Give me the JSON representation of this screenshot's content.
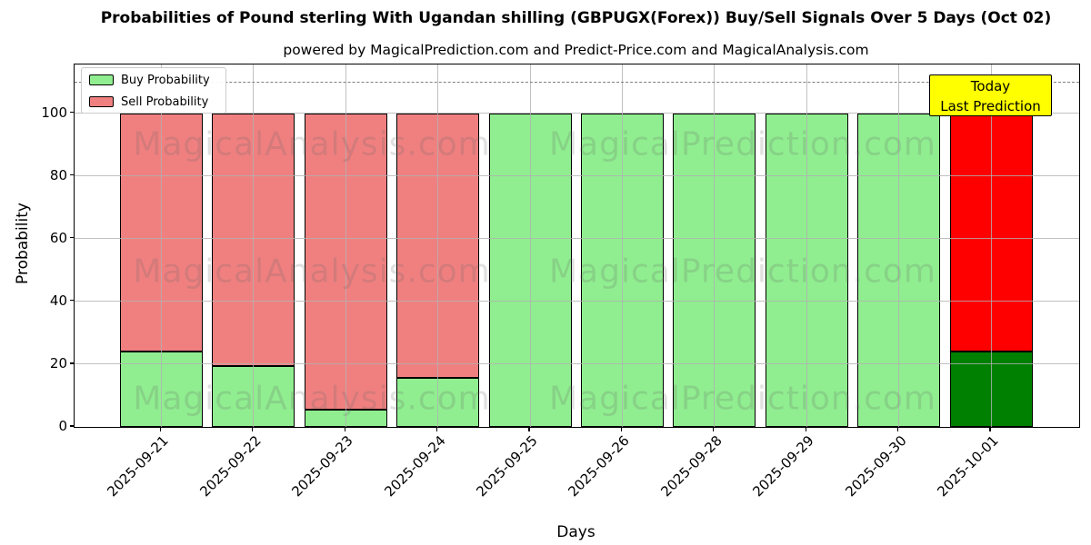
{
  "title": "Probabilities of Pound sterling With Ugandan shilling (GBPUGX(Forex)) Buy/Sell Signals Over 5 Days (Oct 02)",
  "subtitle": "powered by MagicalPrediction.com and Predict-Price.com and MagicalAnalysis.com",
  "annotation": {
    "line1": "Today",
    "line2": "Last Prediction",
    "bg_color": "#ffff00"
  },
  "watermark": {
    "left": "MagicalAnalysis.com",
    "right": "MagicalPrediction.com"
  },
  "chart_data": {
    "type": "bar",
    "stacked": true,
    "title": "Probabilities of Pound sterling With Ugandan shilling (GBPUGX(Forex)) Buy/Sell Signals Over 5 Days (Oct 02)",
    "xlabel": "Days",
    "ylabel": "Probability",
    "categories": [
      "2025-09-21",
      "2025-09-22",
      "2025-09-23",
      "2025-09-24",
      "2025-09-25",
      "2025-09-26",
      "2025-09-28",
      "2025-09-29",
      "2025-09-30",
      "2025-10-01"
    ],
    "series": [
      {
        "name": "Buy Probability",
        "values": [
          24,
          19.5,
          5.5,
          15.5,
          100,
          100,
          100,
          100,
          100,
          24
        ]
      },
      {
        "name": "Sell Probability",
        "values": [
          76,
          80.5,
          94.5,
          84.5,
          0,
          0,
          0,
          0,
          0,
          76
        ]
      }
    ],
    "yticks": [
      0,
      20,
      40,
      60,
      80,
      100
    ],
    "ylim": [
      0,
      115.5
    ],
    "dashed_line_y": 110,
    "grid": true,
    "legend_position": "upper-left",
    "today_index": 9,
    "colors": {
      "buy": "#90ee90",
      "sell": "#f08080",
      "today_buy": "#008000",
      "today_sell": "#ff0000",
      "grid": "#b0b0b0",
      "dashed": "#7f7f7f"
    }
  }
}
